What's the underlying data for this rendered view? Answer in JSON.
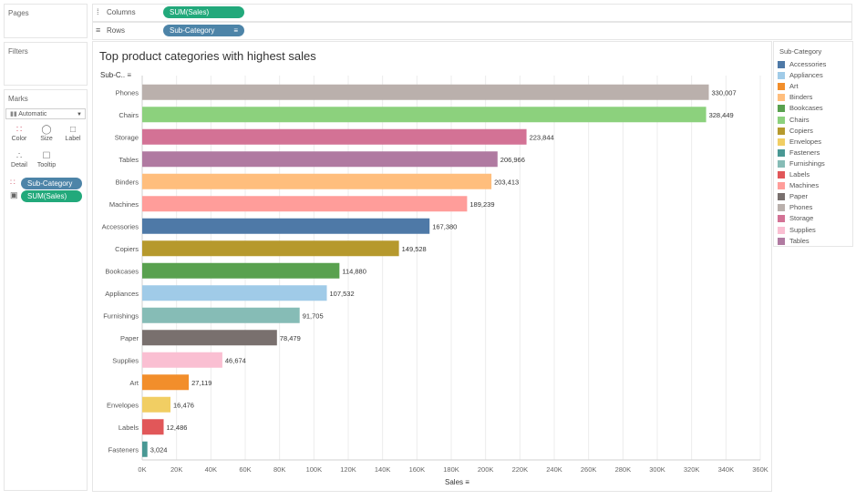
{
  "panels": {
    "pages": "Pages",
    "filters": "Filters",
    "marks": "Marks"
  },
  "shelves": {
    "columns_label": "Columns",
    "columns_pill": "SUM(Sales)",
    "rows_label": "Rows",
    "rows_pill": "Sub-Category"
  },
  "marks": {
    "type": "Automatic",
    "buttons": [
      "Color",
      "Size",
      "Label",
      "Detail",
      "Tooltip"
    ],
    "pills": [
      "Sub-Category",
      "SUM(Sales)"
    ]
  },
  "legend": {
    "title": "Sub-Category",
    "items": [
      {
        "label": "Accessories",
        "color": "#4e79a7"
      },
      {
        "label": "Appliances",
        "color": "#a0cbe8"
      },
      {
        "label": "Art",
        "color": "#f28e2b"
      },
      {
        "label": "Binders",
        "color": "#ffbe7d"
      },
      {
        "label": "Bookcases",
        "color": "#59a14f"
      },
      {
        "label": "Chairs",
        "color": "#8cd17d"
      },
      {
        "label": "Copiers",
        "color": "#b6992d"
      },
      {
        "label": "Envelopes",
        "color": "#f1ce63"
      },
      {
        "label": "Fasteners",
        "color": "#499894"
      },
      {
        "label": "Furnishings",
        "color": "#86bcb6"
      },
      {
        "label": "Labels",
        "color": "#e15759"
      },
      {
        "label": "Machines",
        "color": "#ff9d9a"
      },
      {
        "label": "Paper",
        "color": "#79706e"
      },
      {
        "label": "Phones",
        "color": "#bab0ac"
      },
      {
        "label": "Storage",
        "color": "#d37295"
      },
      {
        "label": "Supplies",
        "color": "#fabfd2"
      },
      {
        "label": "Tables",
        "color": "#b07aa1"
      }
    ]
  },
  "chart_data": {
    "type": "bar",
    "orientation": "horizontal",
    "title": "Top product categories with highest sales",
    "row_header": "Sub-C..",
    "xlabel": "Sales",
    "categories": [
      "Phones",
      "Chairs",
      "Storage",
      "Tables",
      "Binders",
      "Machines",
      "Accessories",
      "Copiers",
      "Bookcases",
      "Appliances",
      "Furnishings",
      "Paper",
      "Supplies",
      "Art",
      "Envelopes",
      "Labels",
      "Fasteners"
    ],
    "values": [
      330007,
      328449,
      223844,
      206966,
      203413,
      189239,
      167380,
      149528,
      114880,
      107532,
      91705,
      78479,
      46674,
      27119,
      16476,
      12486,
      3024
    ],
    "value_labels": [
      "330,007",
      "328,449",
      "223,844",
      "206,966",
      "203,413",
      "189,239",
      "167,380",
      "149,528",
      "114,880",
      "107,532",
      "91,705",
      "78,479",
      "46,674",
      "27,119",
      "16,476",
      "12,486",
      "3,024"
    ],
    "colors": [
      "#bab0ac",
      "#8cd17d",
      "#d37295",
      "#b07aa1",
      "#ffbe7d",
      "#ff9d9a",
      "#4e79a7",
      "#b6992d",
      "#59a14f",
      "#a0cbe8",
      "#86bcb6",
      "#79706e",
      "#fabfd2",
      "#f28e2b",
      "#f1ce63",
      "#e15759",
      "#499894"
    ],
    "xlim": [
      0,
      360000
    ],
    "xticks": [
      0,
      20000,
      40000,
      60000,
      80000,
      100000,
      120000,
      140000,
      160000,
      180000,
      200000,
      220000,
      240000,
      260000,
      280000,
      300000,
      320000,
      340000,
      360000
    ],
    "xtick_labels": [
      "0K",
      "20K",
      "40K",
      "60K",
      "80K",
      "100K",
      "120K",
      "140K",
      "160K",
      "180K",
      "200K",
      "220K",
      "240K",
      "260K",
      "280K",
      "300K",
      "320K",
      "340K",
      "360K"
    ],
    "grid": true
  }
}
